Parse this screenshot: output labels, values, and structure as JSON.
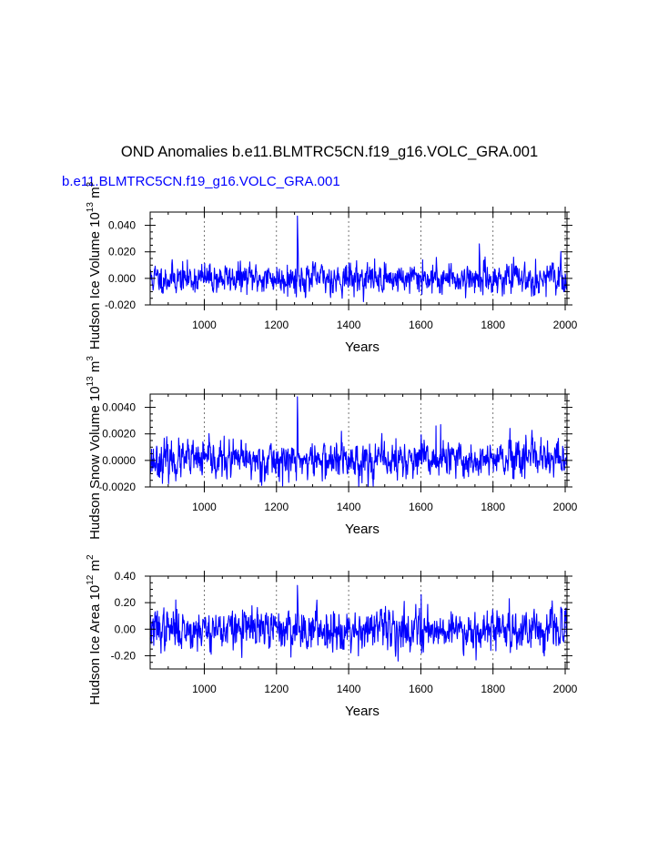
{
  "figure": {
    "title": "OND Anomalies b.e11.BLMTRC5CN.f19_g16.VOLC_GRA.001",
    "subtitle": "b.e11.BLMTRC5CN.f19_g16.VOLC_GRA.001",
    "subtitle_color": "#0000ff",
    "line_color": "#0000ff"
  },
  "chart_data": [
    {
      "type": "line",
      "id": "ice-volume",
      "title": "",
      "xlabel": "Years",
      "ylabel": "Hudson Ice Volume 10^13 m^3",
      "ylabel_parts": {
        "base": "Hudson Ice Volume 10",
        "exp": "13",
        "unit": " m",
        "unit_exp": "3"
      },
      "xlim": [
        850,
        2005
      ],
      "ylim": [
        -0.02,
        0.05
      ],
      "xticks": [
        1000,
        1200,
        1400,
        1600,
        1800,
        2000
      ],
      "xtick_labels": [
        "1000",
        "1200",
        "1400",
        "1600",
        "1800",
        "2000"
      ],
      "yticks": [
        -0.02,
        0.0,
        0.02,
        0.04
      ],
      "ytick_labels": [
        "-0.020",
        "0.000",
        "0.020",
        "0.040"
      ],
      "grid": "vertical dashed at major x ticks",
      "series": [
        {
          "name": "Hudson Ice Volume",
          "x_start": 850,
          "x_end": 2005,
          "std": 0.0052,
          "mean": 0.0,
          "seed": 11,
          "peaks": [
            [
              1258,
              0.047
            ],
            [
              1259,
              0.033
            ],
            [
              1260,
              0.022
            ],
            [
              1230,
              0.01
            ],
            [
              1452,
              0.012
            ],
            [
              1605,
              0.014
            ],
            [
              1762,
              0.026
            ],
            [
              1763,
              0.018
            ]
          ]
        }
      ]
    },
    {
      "type": "line",
      "id": "snow-volume",
      "title": "",
      "xlabel": "Years",
      "ylabel": "Hudson Snow Volume 10^13 m^3",
      "ylabel_parts": {
        "base": "Hudson Snow Volume 10",
        "exp": "13",
        "unit": " m",
        "unit_exp": "3"
      },
      "xlim": [
        850,
        2005
      ],
      "ylim": [
        -0.002,
        0.005
      ],
      "xticks": [
        1000,
        1200,
        1400,
        1600,
        1800,
        2000
      ],
      "xtick_labels": [
        "1000",
        "1200",
        "1400",
        "1600",
        "1800",
        "2000"
      ],
      "yticks": [
        -0.002,
        0.0,
        0.002,
        0.004
      ],
      "ytick_labels": [
        "-0.0020",
        "0.0000",
        "0.0020",
        "0.0040"
      ],
      "grid": "vertical dashed at major x ticks",
      "series": [
        {
          "name": "Hudson Snow Volume",
          "x_start": 850,
          "x_end": 2005,
          "std": 0.00065,
          "mean": 0.0,
          "seed": 23,
          "peaks": [
            [
              1258,
              0.0048
            ],
            [
              1259,
              0.0032
            ],
            [
              1642,
              0.0026
            ],
            [
              1655,
              0.0027
            ],
            [
              1380,
              0.0022
            ]
          ]
        }
      ]
    },
    {
      "type": "line",
      "id": "ice-area",
      "title": "",
      "xlabel": "Years",
      "ylabel": "Hudson Ice Area 10^12 m^2",
      "ylabel_parts": {
        "base": "Hudson Ice Area 10",
        "exp": "12",
        "unit": " m",
        "unit_exp": "2"
      },
      "xlim": [
        850,
        2005
      ],
      "ylim": [
        -0.3,
        0.4
      ],
      "xticks": [
        1000,
        1200,
        1400,
        1600,
        1800,
        2000
      ],
      "xtick_labels": [
        "1000",
        "1200",
        "1400",
        "1600",
        "1800",
        "2000"
      ],
      "yticks": [
        -0.2,
        0.0,
        0.2,
        0.4
      ],
      "ytick_labels": [
        "-0.20",
        "0.00",
        "0.20",
        "0.40"
      ],
      "grid": "vertical dashed at major x ticks",
      "series": [
        {
          "name": "Hudson Ice Area",
          "x_start": 850,
          "x_end": 2005,
          "std": 0.07,
          "mean": 0.0,
          "seed": 37,
          "peaks": [
            [
              1258,
              0.33
            ],
            [
              1259,
              0.24
            ],
            [
              1601,
              0.26
            ],
            [
              921,
              0.22
            ],
            [
              1845,
              0.23
            ]
          ]
        }
      ]
    }
  ]
}
